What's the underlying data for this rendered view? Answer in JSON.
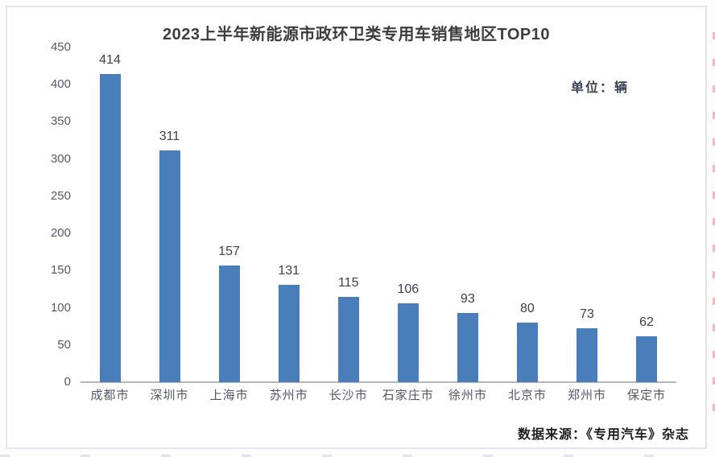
{
  "chart_data": {
    "type": "bar",
    "title": "2023上半年新能源市政环卫类专用车销售地区TOP10",
    "unit_label": "单位：辆",
    "source": "数据来源：《专用汽车》杂志",
    "categories": [
      "成都市",
      "深圳市",
      "上海市",
      "苏州市",
      "长沙市",
      "石家庄市",
      "徐州市",
      "北京市",
      "郑州市",
      "保定市"
    ],
    "values": [
      414,
      311,
      157,
      131,
      115,
      106,
      93,
      80,
      73,
      62
    ],
    "yticks": [
      0,
      50,
      100,
      150,
      200,
      250,
      300,
      350,
      400,
      450
    ],
    "ylim": [
      0,
      450
    ],
    "xlabel": "",
    "ylabel": "",
    "grid": false,
    "legend": false,
    "data_labels": true,
    "bar_color": "#4A7EBB"
  },
  "colors": {
    "bar": "#4A7EBB",
    "title_text": "#3d3d3d",
    "axis_text": "#56566b",
    "value_text": "#3d3d52",
    "category_text": "#55556a",
    "source_text": "#1f1f1f",
    "axis_line": "#b6b6be",
    "border": "#e4e4ec",
    "background": "#ffffff"
  }
}
